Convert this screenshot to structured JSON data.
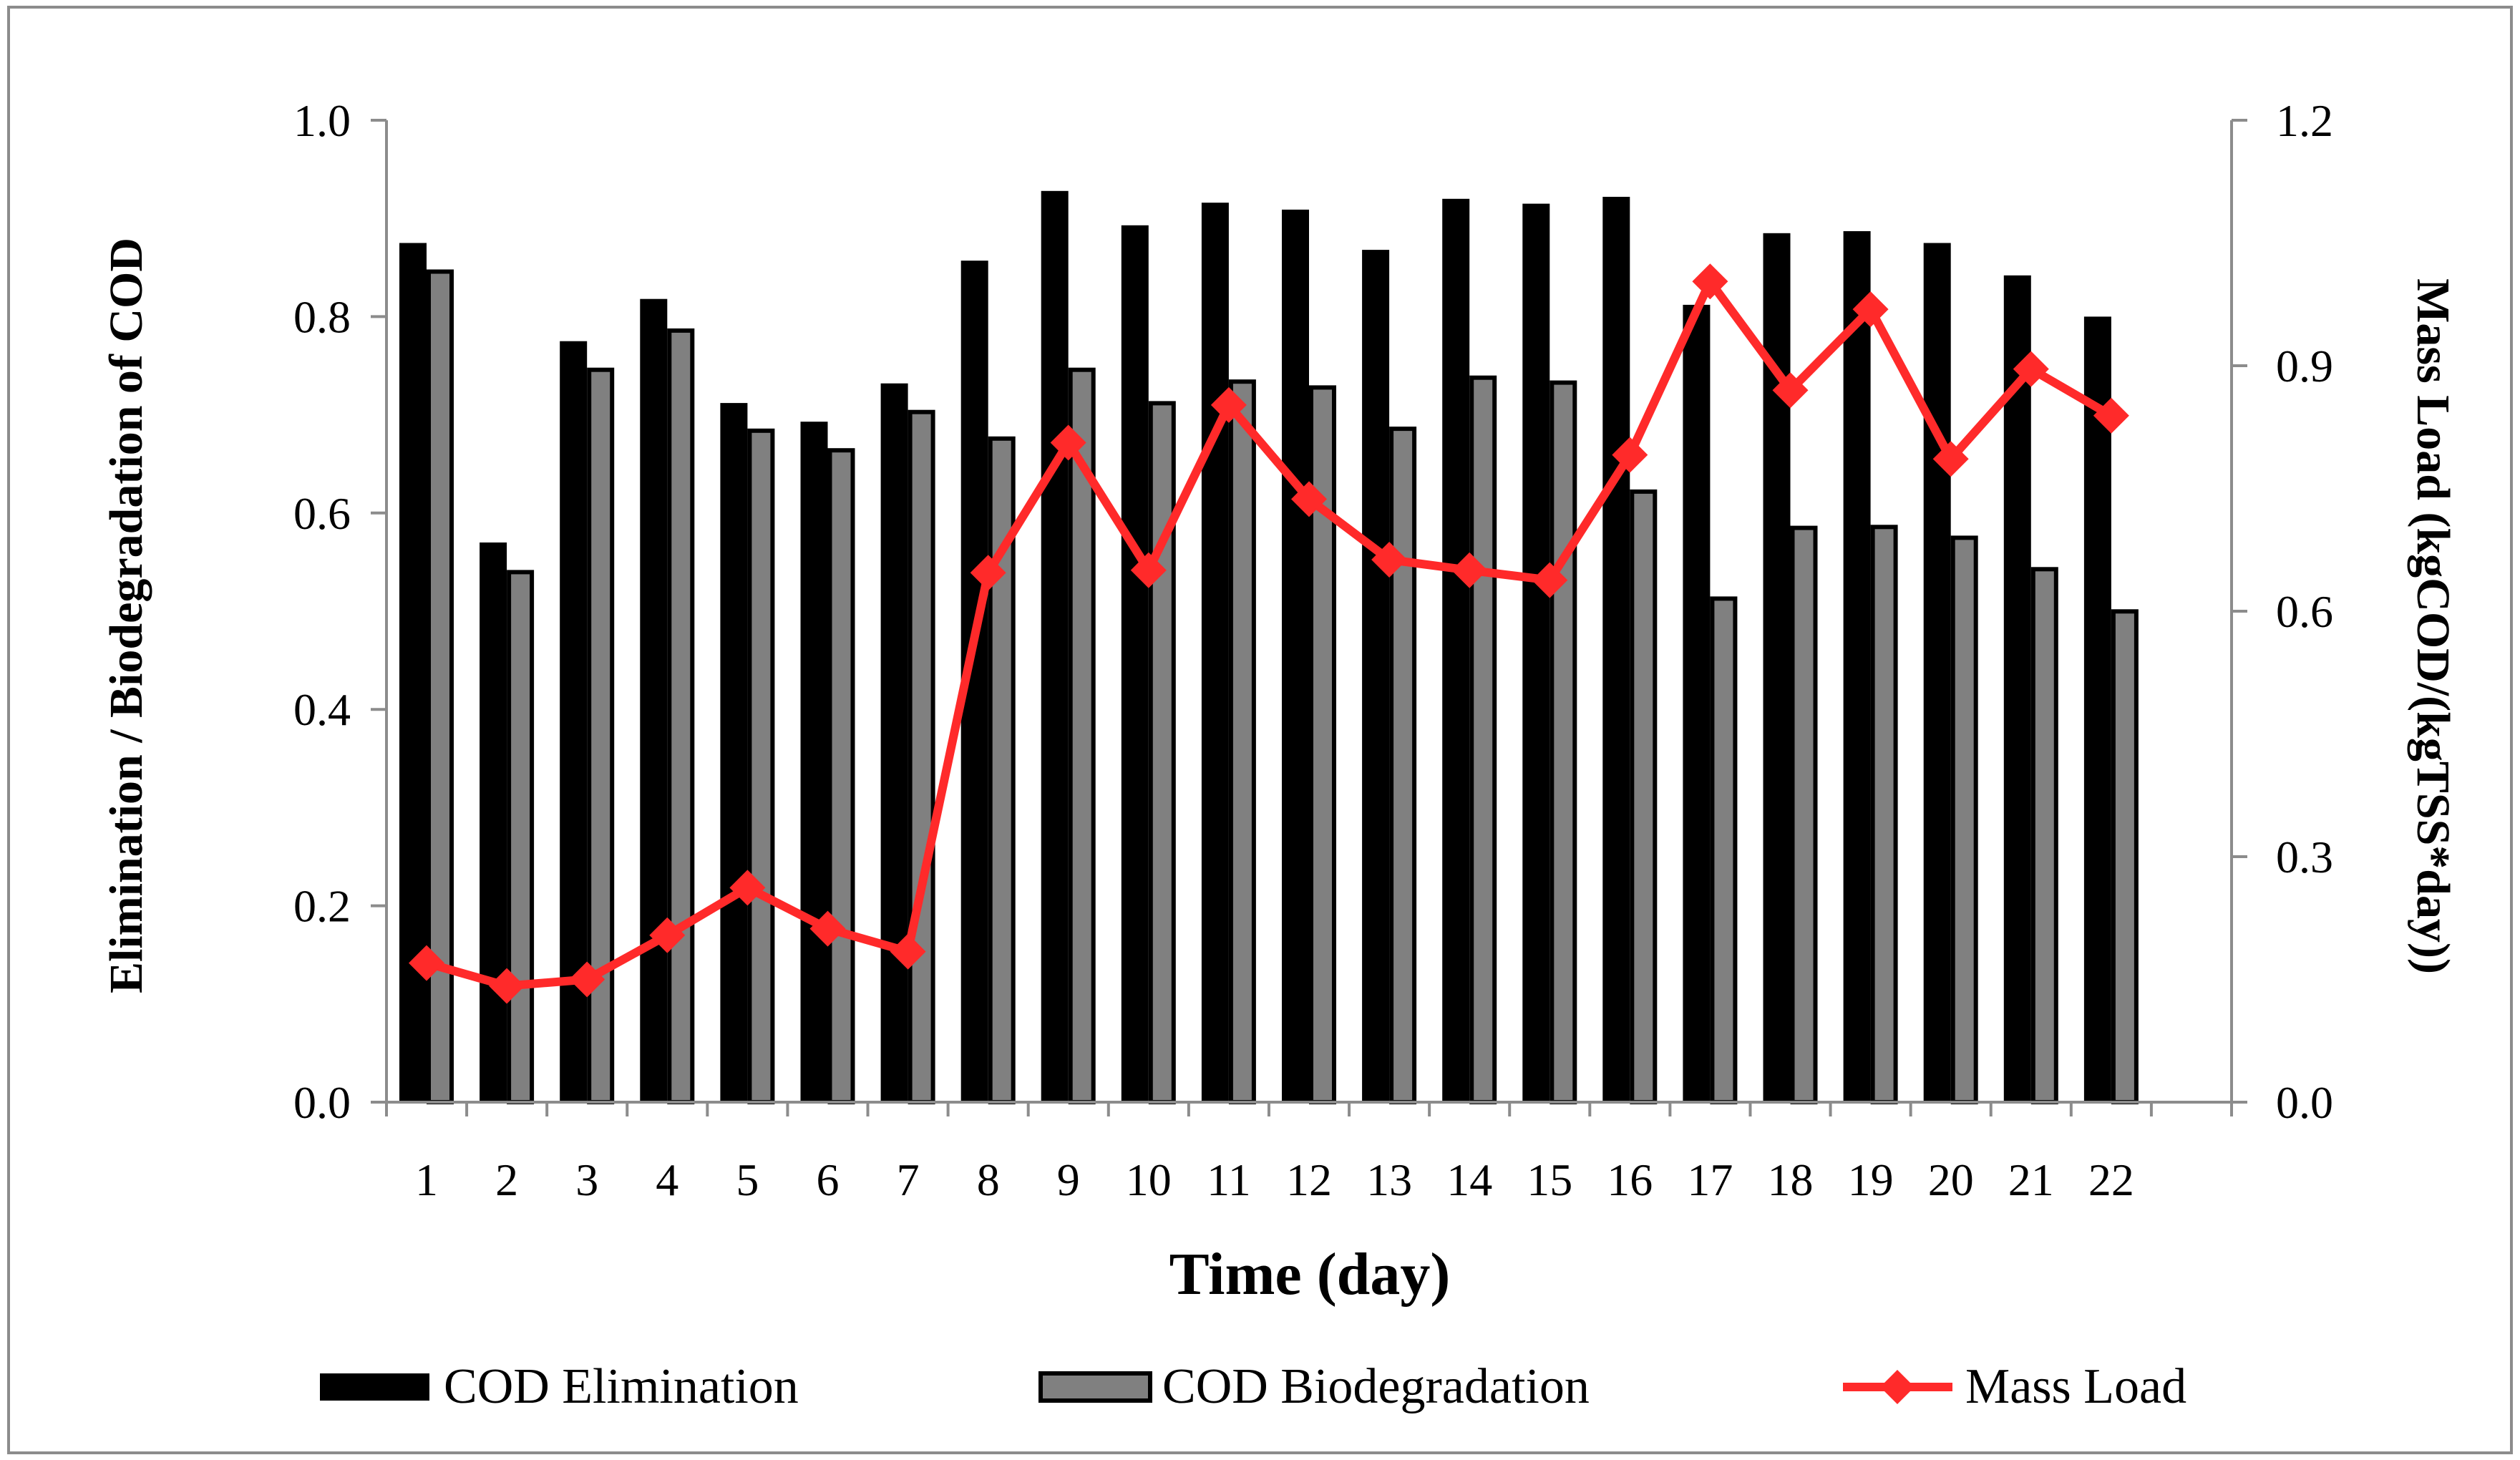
{
  "chart_data": {
    "type": "bar",
    "categories": [
      "1",
      "2",
      "3",
      "4",
      "5",
      "6",
      "7",
      "8",
      "9",
      "10",
      "11",
      "12",
      "13",
      "14",
      "15",
      "16",
      "17",
      "18",
      "19",
      "20",
      "21",
      "22"
    ],
    "series": [
      {
        "name": "COD Elimination",
        "type": "bar",
        "axis": "left",
        "color": "#000000",
        "values": [
          0.875,
          0.57,
          0.775,
          0.818,
          0.712,
          0.693,
          0.732,
          0.857,
          0.928,
          0.893,
          0.916,
          0.909,
          0.868,
          0.92,
          0.915,
          0.922,
          0.812,
          0.885,
          0.887,
          0.875,
          0.842,
          0.8
        ]
      },
      {
        "name": "COD Biodegradation",
        "type": "bar",
        "axis": "left",
        "color": "#808080",
        "values": [
          0.848,
          0.542,
          0.748,
          0.788,
          0.686,
          0.666,
          0.705,
          0.678,
          0.748,
          0.714,
          0.736,
          0.73,
          0.688,
          0.74,
          0.735,
          0.624,
          0.515,
          0.587,
          0.588,
          0.577,
          0.545,
          0.502
        ]
      },
      {
        "name": "Mass Load",
        "type": "line",
        "axis": "right",
        "color": "#ff2a2a",
        "marker": "diamond",
        "values": [
          0.17,
          0.142,
          0.15,
          0.204,
          0.262,
          0.212,
          0.184,
          0.647,
          0.806,
          0.65,
          0.852,
          0.737,
          0.663,
          0.65,
          0.638,
          0.791,
          1.003,
          0.87,
          0.969,
          0.786,
          0.896,
          0.839
        ]
      }
    ],
    "title": "",
    "xlabel": "Time (day)",
    "ylabel": "Elimination / Biodegradation  of COD",
    "y2label": "Mass Load (kgCOD/(kgTSS*day))",
    "ylim": [
      0.0,
      1.0
    ],
    "y2lim": [
      0.0,
      1.2
    ],
    "yticks": [
      "0.0",
      "0.2",
      "0.4",
      "0.6",
      "0.8",
      "1.0"
    ],
    "y2ticks": [
      "0.0",
      "0.3",
      "0.6",
      "0.9",
      "1.2"
    ],
    "legend": {
      "position": "bottom",
      "items": [
        "COD Elimination",
        "COD Biodegradation",
        "Mass Load"
      ]
    }
  }
}
